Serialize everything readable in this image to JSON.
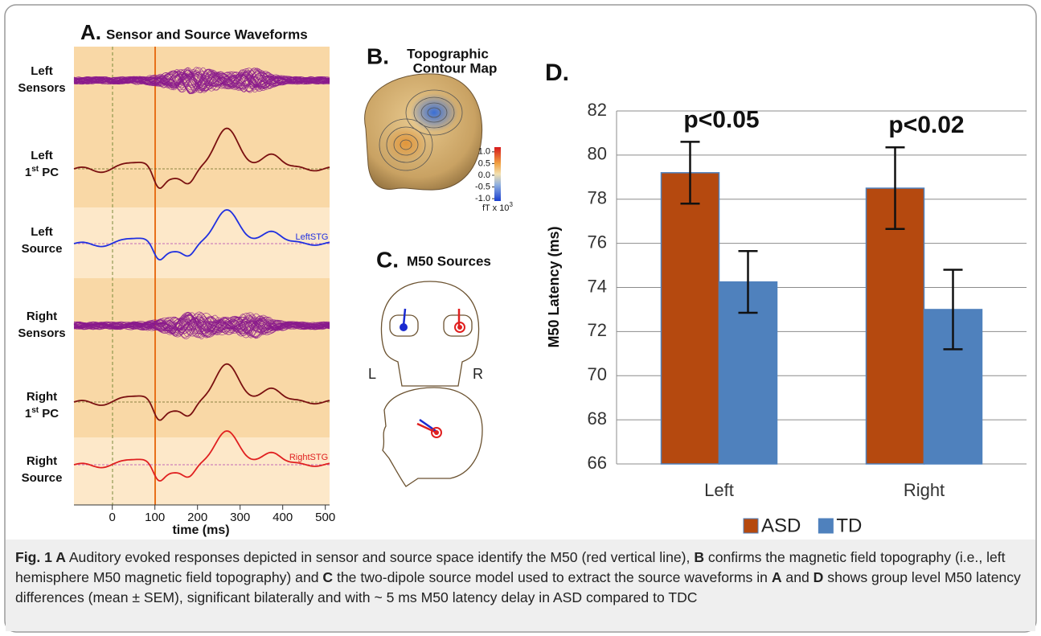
{
  "panel_a": {
    "label": "A.",
    "title": "Sensor and Source Waveforms",
    "rows": [
      {
        "top": "Left",
        "bottom": "Sensors"
      },
      {
        "top": "Left",
        "bottom": "1",
        "sup": "st",
        "suffix": " PC"
      },
      {
        "top": "Left",
        "bottom": "Source"
      },
      {
        "top": "Right",
        "bottom": "Sensors"
      },
      {
        "top": "Right",
        "bottom": "1",
        "sup": "st",
        "suffix": " PC"
      },
      {
        "top": "Right",
        "bottom": "Source"
      }
    ],
    "trace_labels": [
      "LeftSTG",
      "RightSTG"
    ],
    "xlabel": "time (ms)",
    "xlim": [
      -90,
      510
    ],
    "xticks": [
      0,
      100,
      200,
      300,
      400,
      500
    ]
  },
  "panel_b": {
    "label": "B.",
    "title_lines": [
      "Topographic",
      "Contour Map"
    ],
    "colorbar_ticks": [
      {
        "value": 1,
        "label": "1.0"
      },
      {
        "value": 0.5,
        "label": "0.5"
      },
      {
        "value": 0,
        "label": "0.0"
      },
      {
        "value": -0.5,
        "label": "-0.5"
      },
      {
        "value": -1,
        "label": "-1.0"
      }
    ],
    "colorbar_lim": [
      -1.1,
      1.2
    ],
    "unit": "fT x 10",
    "unit_exp": "3"
  },
  "panel_c": {
    "label": "C.",
    "title": "M50 Sources",
    "left": "L",
    "right": "R"
  },
  "chart_data": {
    "type": "bar",
    "title": "D.",
    "ylabel": "M50 Latency (ms)",
    "categories": [
      "Left",
      "Right"
    ],
    "series": [
      {
        "name": "ASD",
        "color": "#b5490f",
        "values": [
          79.2,
          78.5
        ],
        "errors": [
          1.4,
          1.85
        ]
      },
      {
        "name": "TD",
        "color": "#4f81bd",
        "values": [
          74.25,
          73.0
        ],
        "errors": [
          1.4,
          1.8
        ]
      }
    ],
    "annotations": [
      "p<0.05",
      "p<0.02"
    ],
    "ylim": [
      66,
      82
    ],
    "yticks": [
      66,
      68,
      70,
      72,
      74,
      76,
      78,
      80,
      82
    ],
    "grid": true
  },
  "caption": {
    "parts": [
      "Fig. 1",
      " A",
      " Auditory evoked responses depicted in sensor and source space identify the M50 (red vertical line), ",
      "B",
      " confirms the magnetic field topography (i.e., left hemisphere M50 magnetic field topography) and ",
      "C",
      " the two-dipole source model used to extract the source waveforms in ",
      "A",
      " and ",
      "D",
      " shows group level M50 latency differences (mean ± SEM), significant bilaterally and with ~ 5 ms M50 latency delay in ASD compared to TDC"
    ]
  }
}
